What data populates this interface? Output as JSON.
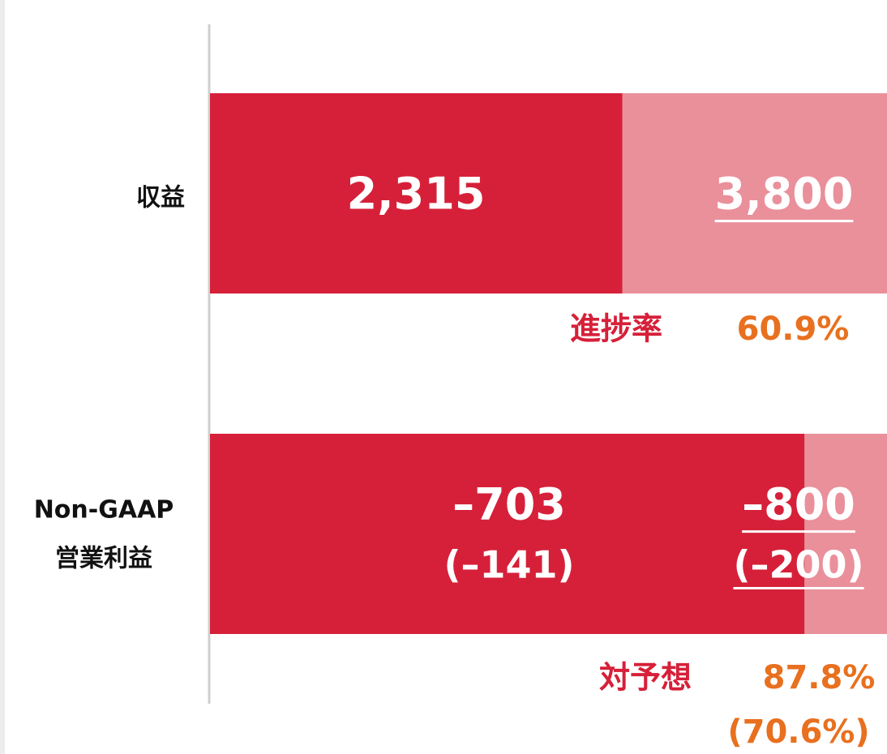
{
  "chart_data": {
    "type": "progress",
    "xlim": [
      0,
      100
    ],
    "actual_color": "#d62039",
    "target_color": "#e9909b",
    "rows": [
      {
        "label_lines": [
          "収益"
        ],
        "actual": 2315,
        "actual_label": "2,315",
        "target": 3800,
        "target_label": "3,800",
        "ratio_name": "進捗率",
        "ratio": 60.9,
        "ratio_label": "60.9%"
      },
      {
        "label_lines": [
          "Non-GAAP",
          "営業利益"
        ],
        "actual": -703,
        "actual_label": "–703",
        "actual_sub": -141,
        "actual_sub_label": "(–141)",
        "target": -800,
        "target_label": "–800",
        "target_sub": -200,
        "target_sub_label": "(–200)",
        "ratio_name": "対予想",
        "ratio": 87.8,
        "ratio_label": "87.8%",
        "ratio_sub": 70.6,
        "ratio_sub_label": "(70.6%)"
      }
    ]
  }
}
